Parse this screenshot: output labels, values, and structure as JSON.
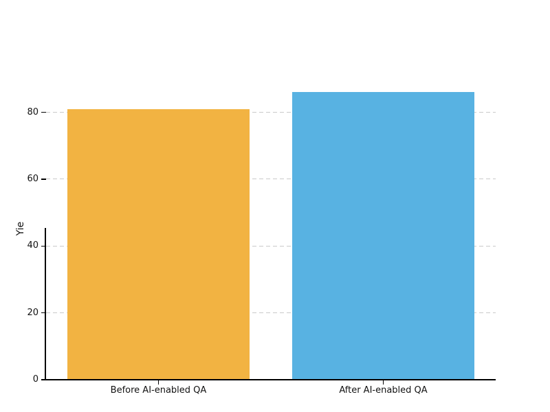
{
  "chart_data": {
    "type": "bar",
    "categories": [
      "Before AI-enabled QA",
      "After AI-enabled QA"
    ],
    "values": [
      81,
      86
    ],
    "bar_colors": [
      "#F2B342",
      "#58B2E2"
    ],
    "title": "",
    "xlabel": "",
    "ylabel": "Yie",
    "yticks": [
      0,
      20,
      40,
      60,
      80
    ],
    "ylim": [
      0,
      90.3
    ],
    "grid": "horizontal-dashed",
    "legend": "none",
    "colors": {
      "background": "#FFFFFF",
      "gridline": "#C9C9C9",
      "axis": "#000000",
      "text": "#111111"
    }
  }
}
